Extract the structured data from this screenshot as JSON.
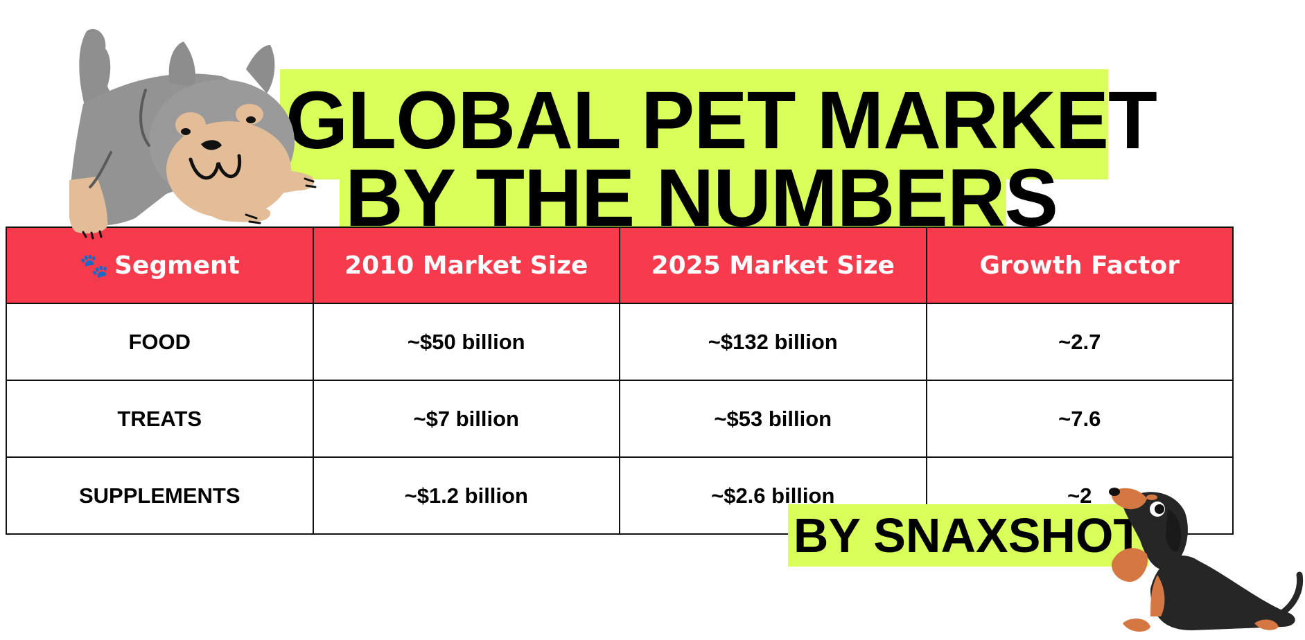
{
  "title": {
    "line1": "GLOBAL PET MARKET",
    "line2": "BY THE NUMBERS"
  },
  "byline": "BY SNAXSHOT",
  "header_icon": "paw-icon",
  "illustrations": [
    "yorkie-dog-illustration",
    "dachshund-dog-illustration"
  ],
  "colors": {
    "header_bg": "#f73a4c",
    "title_highlight": "#d8ff5a"
  },
  "chart_data": {
    "type": "table",
    "columns": [
      "Segment",
      "2010 Market Size",
      "2025 Market Size",
      "Growth Factor"
    ],
    "rows": [
      [
        "FOOD",
        "~$50 billion",
        "~$132 billion",
        "~2.7"
      ],
      [
        "TREATS",
        "~$7 billion",
        "~$53 billion",
        "~7.6"
      ],
      [
        "SUPPLEMENTS",
        "~$1.2 billion",
        "~$2.6 billion",
        "~2"
      ]
    ]
  }
}
